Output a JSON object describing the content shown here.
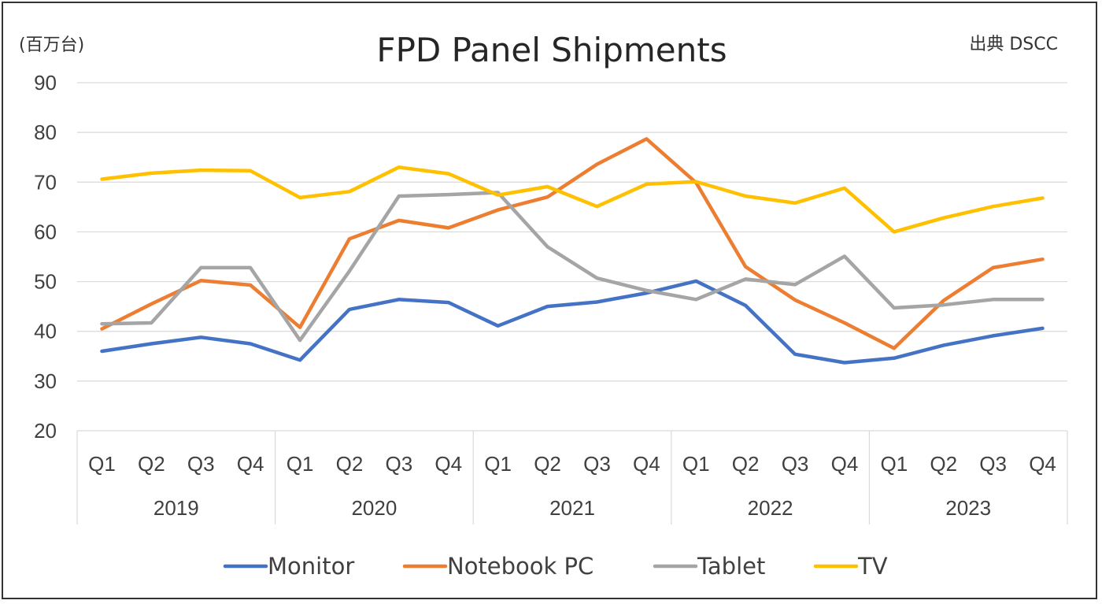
{
  "chart_data": {
    "type": "line",
    "title": "FPD Panel Shipments",
    "unit_label": "(百万台)",
    "source_label": "出典 DSCC",
    "ylim": [
      20,
      90
    ],
    "yticks": [
      "20",
      "30",
      "40",
      "50",
      "60",
      "70",
      "80",
      "90"
    ],
    "grid": true,
    "legend_position": "bottom",
    "quarters": [
      "Q1",
      "Q2",
      "Q3",
      "Q4",
      "Q1",
      "Q2",
      "Q3",
      "Q4",
      "Q1",
      "Q2",
      "Q3",
      "Q4",
      "Q1",
      "Q2",
      "Q3",
      "Q4",
      "Q1",
      "Q2",
      "Q3",
      "Q4"
    ],
    "years": [
      "2019",
      "2020",
      "2021",
      "2022",
      "2023"
    ],
    "series": [
      {
        "name": "Monitor",
        "color": "#4472c4",
        "values": [
          36.0,
          37.5,
          38.8,
          37.5,
          34.2,
          44.4,
          46.4,
          45.8,
          41.1,
          45.0,
          45.9,
          47.7,
          50.1,
          45.2,
          35.4,
          33.7,
          34.6,
          37.2,
          39.1,
          40.6
        ]
      },
      {
        "name": "Notebook PC",
        "color": "#ed7d31",
        "values": [
          40.5,
          45.5,
          50.2,
          49.3,
          40.8,
          58.6,
          62.3,
          60.8,
          64.4,
          67.0,
          73.6,
          78.7,
          69.9,
          53.0,
          46.3,
          41.7,
          36.6,
          46.2,
          52.8,
          54.5
        ]
      },
      {
        "name": "Tablet",
        "color": "#a5a5a5",
        "values": [
          41.5,
          41.7,
          52.8,
          52.8,
          38.2,
          52.1,
          67.2,
          67.5,
          67.9,
          57.0,
          50.7,
          48.2,
          46.4,
          50.5,
          49.4,
          55.1,
          44.7,
          45.3,
          46.4,
          46.4
        ]
      },
      {
        "name": "TV",
        "color": "#ffc000",
        "values": [
          70.6,
          71.8,
          72.4,
          72.3,
          66.9,
          68.1,
          73.0,
          71.7,
          67.4,
          69.1,
          65.1,
          69.6,
          70.1,
          67.2,
          65.8,
          68.8,
          60.0,
          62.8,
          65.1,
          66.8
        ]
      }
    ]
  }
}
